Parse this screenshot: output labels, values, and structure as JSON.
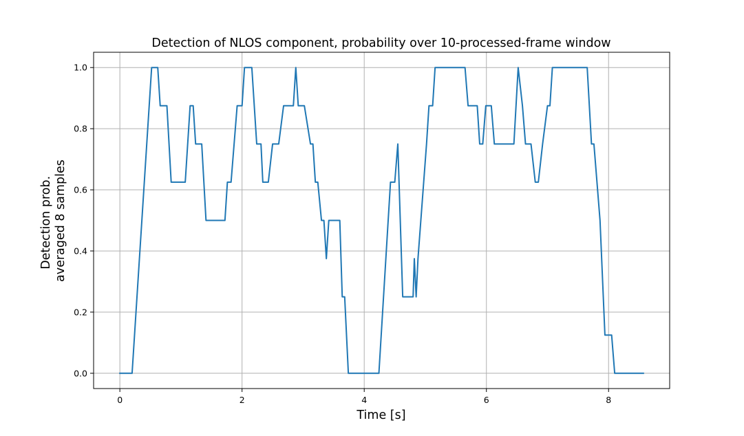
{
  "chart_data": {
    "type": "line",
    "title": "Detection of NLOS component, probability over 10-processed-frame window",
    "xlabel": "Time [s]",
    "ylabel_lines": [
      "Detection prob.",
      "averaged 8 samples"
    ],
    "xlim": [
      -0.43,
      9.0
    ],
    "ylim": [
      -0.05,
      1.05
    ],
    "xticks": [
      0,
      2,
      4,
      6,
      8
    ],
    "yticks": [
      0.0,
      0.2,
      0.4,
      0.6,
      0.8,
      1.0
    ],
    "xtick_labels": [
      "0",
      "2",
      "4",
      "6",
      "8"
    ],
    "ytick_labels": [
      "0.0",
      "0.2",
      "0.4",
      "0.6",
      "0.8",
      "1.0"
    ],
    "grid": true,
    "legend": "none",
    "series": [
      {
        "color": "#1f77b4",
        "x": [
          0.0,
          0.2,
          0.52,
          0.57,
          0.62,
          0.66,
          0.77,
          0.84,
          1.07,
          1.15,
          1.2,
          1.24,
          1.34,
          1.41,
          1.72,
          1.76,
          1.82,
          1.92,
          2.0,
          2.04,
          2.16,
          2.24,
          2.31,
          2.34,
          2.43,
          2.5,
          2.6,
          2.68,
          2.84,
          2.88,
          2.92,
          3.02,
          3.12,
          3.16,
          3.2,
          3.24,
          3.3,
          3.34,
          3.38,
          3.42,
          3.46,
          3.52,
          3.6,
          3.64,
          3.68,
          3.74,
          3.8,
          4.07,
          4.14,
          4.24,
          4.43,
          4.5,
          4.55,
          4.63,
          4.72,
          4.8,
          4.82,
          4.85,
          4.88,
          5.02,
          5.06,
          5.12,
          5.16,
          5.2,
          5.65,
          5.7,
          5.85,
          5.89,
          5.94,
          5.99,
          6.08,
          6.13,
          6.24,
          6.3,
          6.45,
          6.52,
          6.59,
          6.64,
          6.73,
          6.8,
          6.85,
          6.92,
          7.0,
          7.04,
          7.08,
          7.14,
          7.2,
          7.27,
          7.65,
          7.72,
          7.76,
          7.86,
          7.94,
          8.05,
          8.1,
          8.57
        ],
        "y": [
          0.0,
          0.0,
          1.0,
          1.0,
          1.0,
          0.875,
          0.875,
          0.625,
          0.625,
          0.875,
          0.875,
          0.75,
          0.75,
          0.5,
          0.5,
          0.625,
          0.625,
          0.875,
          0.875,
          1.0,
          1.0,
          0.75,
          0.75,
          0.625,
          0.625,
          0.75,
          0.75,
          0.875,
          0.875,
          1.0,
          0.875,
          0.875,
          0.75,
          0.75,
          0.625,
          0.625,
          0.5,
          0.5,
          0.375,
          0.5,
          0.5,
          0.5,
          0.5,
          0.25,
          0.25,
          0.0,
          0.0,
          0.0,
          0.0,
          0.0,
          0.625,
          0.625,
          0.75,
          0.25,
          0.25,
          0.25,
          0.375,
          0.25,
          0.375,
          0.75,
          0.875,
          0.875,
          1.0,
          1.0,
          1.0,
          0.875,
          0.875,
          0.75,
          0.75,
          0.875,
          0.875,
          0.75,
          0.75,
          0.75,
          0.75,
          1.0,
          0.875,
          0.75,
          0.75,
          0.625,
          0.625,
          0.75,
          0.875,
          0.875,
          1.0,
          1.0,
          1.0,
          1.0,
          1.0,
          0.75,
          0.75,
          0.5,
          0.125,
          0.125,
          0.0,
          0.0
        ]
      }
    ]
  }
}
